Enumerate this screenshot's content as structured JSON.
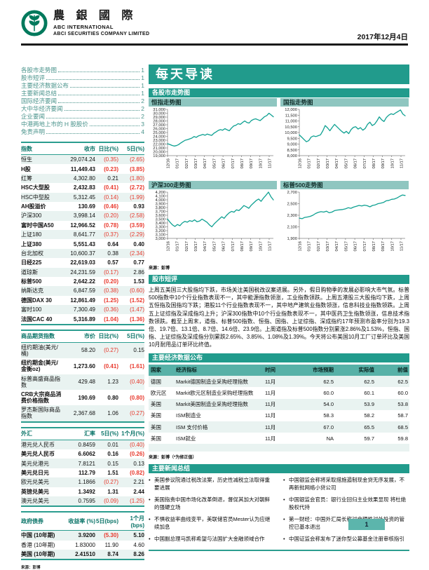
{
  "header": {
    "brand_cn": "農 銀 國 際",
    "brand_en1": "ABC INTERNATIONAL",
    "brand_en2": "ABCI SECURITIES COMPANY LIMITED",
    "date": "2017年12月4日"
  },
  "colors": {
    "teal": "#219b8c",
    "teal_light": "#8fc6c0",
    "row_alt": "#e9f3f1",
    "negative_red": "#e8382c",
    "logo_green": "#00795c",
    "chart_line": "#0fa192"
  },
  "toc": [
    {
      "label": "各股市走势图",
      "page": "1"
    },
    {
      "label": "股市短评",
      "page": "1"
    },
    {
      "label": "主要经济数据公布",
      "page": "1"
    },
    {
      "label": "主要新闻总结",
      "page": "1"
    },
    {
      "label": "国际经济要闻",
      "page": "2"
    },
    {
      "label": "大中华经济要闻",
      "page": "2"
    },
    {
      "label": "企业要闻",
      "page": "2"
    },
    {
      "label": "中港两地上市的 H 股股价",
      "page": "3"
    },
    {
      "label": "免责声明",
      "page": "4"
    }
  ],
  "left_tables": [
    {
      "name": "market-index-table",
      "headers": [
        "指数",
        "收市",
        "日比(%)",
        "5日(%)"
      ],
      "rows": [
        [
          "恒生",
          "29,074.24",
          "(0.35)",
          "(2.65)",
          0
        ],
        [
          "H股",
          "11,449.43",
          "(0.23)",
          "(3.85)",
          1
        ],
        [
          "红筹",
          "4,302.80",
          "0.21",
          "(1.80)",
          0
        ],
        [
          "HSC大型股",
          "2,432.83",
          "(0.41)",
          "(2.72)",
          1
        ],
        [
          "HSC中型股",
          "5,312.45",
          "(0.14)",
          "(1.99)",
          0
        ],
        [
          "AH股溢价",
          "130.69",
          "(0.46)",
          "0.93",
          1
        ],
        [
          "沪深300",
          "3,998.14",
          "(0.20)",
          "(2.58)",
          0
        ],
        [
          "富时中国A50",
          "12,966.52",
          "(0.78)",
          "(3.59)",
          1
        ],
        [
          "上证180",
          "8,641.77",
          "(0.37)",
          "(2.29)",
          0
        ],
        [
          "上证380",
          "5,551.43",
          "0.64",
          "0.40",
          1
        ],
        [
          "台北加权",
          "10,600.37",
          "0.38",
          "(2.34)",
          0
        ],
        [
          "日经225",
          "22,619.03",
          "0.57",
          "0.77",
          1
        ],
        [
          "道琼斯",
          "24,231.59",
          "(0.17)",
          "2.86",
          0
        ],
        [
          "标普500",
          "2,642.22",
          "(0.20)",
          "1.53",
          1
        ],
        [
          "纳斯达克",
          "6,847.59",
          "(0.38)",
          "(0.60)",
          0
        ],
        [
          "德国DAX 30",
          "12,861.49",
          "(1.25)",
          "(1.52)",
          1
        ],
        [
          "富时100",
          "7,300.49",
          "(0.36)",
          "(1.47)",
          0
        ],
        [
          "法国CAC 40",
          "5,316.89",
          "(1.04)",
          "(1.36)",
          1
        ]
      ]
    },
    {
      "name": "commodity-futures-table",
      "headers": [
        "商品期货指数",
        "市价",
        "日比(%)",
        "5日(%)"
      ],
      "rows": [
        [
          "纽约期油(美元/桶)",
          "58.20",
          "(0.27)",
          "0.15",
          0
        ],
        [
          "纽约期金(美元/金衡oz)",
          "1,273.60",
          "(0.41)",
          "(1.61)",
          1
        ],
        [
          "标普高盛商品指数",
          "429.48",
          "1.23",
          "(0.40)",
          0
        ],
        [
          "CRB大宗商品消费价格指数",
          "190.69",
          "0.80",
          "(0.80)",
          1
        ],
        [
          "罗杰斯国际商品指数",
          "2,367.68",
          "1.06",
          "(0.27)",
          0
        ]
      ]
    },
    {
      "name": "fx-table",
      "headers": [
        "外汇",
        "汇率",
        "5日(%)",
        "1个月(%)"
      ],
      "rows": [
        [
          "港元兑人民币",
          "0.8459",
          "0.01",
          "(0.40)",
          0
        ],
        [
          "美元兑人民币",
          "6.6062",
          "0.16",
          "(0.26)",
          1
        ],
        [
          "美元兑港元",
          "7.8121",
          "0.15",
          "0.13",
          0
        ],
        [
          "美元兑日元",
          "112.79",
          "1.51",
          "(0.82)",
          1
        ],
        [
          "欧元兑美元",
          "1.1866",
          "(0.27)",
          "2.21",
          0
        ],
        [
          "英镑兑美元",
          "1.3492",
          "1.31",
          "2.44",
          1
        ],
        [
          "澳元兑美元",
          "0.7595",
          "(0.09)",
          "(1.25)",
          0
        ]
      ]
    },
    {
      "name": "govt-bond-table",
      "headers": [
        "政府债券",
        "收益率 (%)",
        "5日(bps)",
        "1个月(bps)"
      ],
      "rows": [
        [
          "中国 (10年期)",
          "3.9200",
          "(5.30)",
          "5.10",
          1
        ],
        [
          "香港 (10年期)",
          "1.83000",
          "11.90",
          "4.60",
          0
        ],
        [
          "美国 (10年期)",
          "2.41510",
          "8.74",
          "8.26",
          1
        ]
      ]
    }
  ],
  "left_source_note": "来源：彭博",
  "main": {
    "banner": "每天导读",
    "charts_section_title": "各股市走势图",
    "charts_source": "来源：彭博",
    "commentary": {
      "title": "股市短评",
      "text": "上周五美国三大股指均下跌，市场关注美国税改议案进展。另外，假日购物季的发展必影响大市气氛。标普500指数中10个行业指数表现不一，其中能源指数领涨，工业指数领跌。上周五港股三大股指均下跌，上周五恒指及国指均下跌；港股11个行业指数表现不一，其中地产建筑业指数领涨，信息科技业指数领跌。上周五上证综指及深成指均上升；沪深300指数中10个行业指数表现不一，其中医药卫生指数领涨，信息技术指数领跌。截至上周末，道指、标普500指数、恒指、国指、上证综指、深成指约17年预测市盈率分别为19.3倍、19.7倍、13.1倍、8.7倍、14.6倍、23.9倍。上周道指及标普500指数分别累涨2.86%及1.53%，恒指、国指、上证综指及深成指分别累跌2.65%、3.85%、1.08%及1.39%。今天将公布美国10月工厂订单环比及美国10月耐用品订单环比终值。"
    },
    "econ": {
      "title": "主要经济数据公布",
      "headers": [
        "国家",
        "经济指标",
        "时间",
        "市场预期",
        "实际值",
        "前值"
      ],
      "rows": [
        [
          "德国",
          "Markit德国制造业采购经理指数",
          "11月",
          "62.5",
          "62.5",
          "62.5"
        ],
        [
          "欧元区",
          "Markit欧元区制造业采购经理指数",
          "11月",
          "60.0",
          "60.1",
          "60.0"
        ],
        [
          "美国",
          "Markit美国制造业采购经理指数",
          "11月",
          "54.0",
          "53.9",
          "53.8"
        ],
        [
          "美国",
          "ISM制造业",
          "11月",
          "58.3",
          "58.2",
          "58.7"
        ],
        [
          "美国",
          "ISM 支付价格",
          "11月",
          "67.0",
          "65.5",
          "68.5"
        ],
        [
          "美国",
          "ISM就业",
          "11月",
          "NA",
          "59.7",
          "59.8"
        ]
      ],
      "note": "来源：彭博（*为修正值）"
    },
    "news": {
      "title": "主要新闻总结",
      "left": [
        "美国参议院通过税改法案，历史性减税立法取得重要进展",
        "美国指责中国市场化改革倒退，督促其加大对朝鲜的强硬立场",
        "不惧收益率曲线变平，美联储官员Mester认为应继续加息",
        "中国副总理马凯称希望与法国扩大金融领域合作"
      ],
      "right": [
        "中国银监会称将采取措施遏制现金贷无序发展，不再新批网络小贷公司",
        "中国银监会官员：银行业回归主业效果显现 将杜绝股权代持",
        "第一财经：中国外汇局长称对非理性对外投资的管控已基本退出",
        "中国证监会称发布了迷你型公募基金注册审核指引"
      ]
    },
    "page_number": "1"
  },
  "chart_data": [
    {
      "type": "line",
      "title": "恒指走势图",
      "x_labels": [
        "12/16",
        "01/17",
        "02/17",
        "03/17",
        "04/17",
        "05/17",
        "06/17",
        "07/17",
        "08/17",
        "09/17",
        "10/17",
        "11/17"
      ],
      "ylim": [
        19000,
        31000
      ],
      "y_step": 1000,
      "line_color": "#0fa192",
      "values": [
        22100,
        21900,
        21650,
        21500,
        21600,
        21850,
        22300,
        22650,
        23000,
        23150,
        23350,
        23550,
        23950,
        23750,
        24100,
        24300,
        24500,
        24300,
        24600,
        24400,
        24250,
        24800,
        25150,
        25550,
        25750,
        25600,
        26000,
        25700,
        25450,
        26150,
        26700,
        26900,
        27300,
        27100,
        27600,
        28000,
        27600,
        27450,
        28100,
        28400,
        28550,
        28300,
        28100,
        28600,
        29100,
        29400,
        30000,
        29550,
        29074
      ]
    },
    {
      "type": "line",
      "title": "国指走势图",
      "x_labels": [
        "12/16",
        "01/17",
        "02/17",
        "03/17",
        "04/17",
        "05/17",
        "06/17",
        "07/17",
        "08/17",
        "09/17",
        "10/17",
        "11/17"
      ],
      "ylim": [
        8000,
        12000
      ],
      "y_step": 500,
      "line_color": "#0fa192",
      "values": [
        9800,
        9600,
        9400,
        9200,
        9300,
        9600,
        9700,
        9650,
        9720,
        9800,
        10150,
        10600,
        10400,
        10150,
        10450,
        10700,
        10500,
        10300,
        10100,
        9950,
        10100,
        9900,
        10250,
        10450,
        10500,
        10300,
        10420,
        10200,
        10350,
        10700,
        10900,
        10600,
        10720,
        11000,
        11350,
        11100,
        10950,
        11300,
        11500,
        11620,
        11550,
        11700,
        11820,
        11950,
        11600,
        11449
      ]
    },
    {
      "type": "line",
      "title": "沪深300走势图",
      "x_labels": [
        "12/16",
        "01/17",
        "02/17",
        "03/17",
        "04/17",
        "05/17",
        "06/17",
        "07/17",
        "08/17",
        "09/17",
        "10/17",
        "11/17"
      ],
      "ylim": [
        3000,
        4200
      ],
      "y_step": 100,
      "line_color": "#0fa192",
      "values": [
        3500,
        3420,
        3350,
        3310,
        3360,
        3330,
        3400,
        3440,
        3420,
        3460,
        3440,
        3480,
        3430,
        3450,
        3500,
        3460,
        3420,
        3350,
        3300,
        3380,
        3440,
        3500,
        3560,
        3520,
        3600,
        3660,
        3700,
        3680,
        3740,
        3720,
        3780,
        3850,
        3820,
        3780,
        3860,
        3920,
        3980,
        4020,
        3960,
        4050,
        4120,
        4200,
        4080,
        3998
      ]
    },
    {
      "type": "line",
      "title": "标普500走势图",
      "x_labels": [
        "12/16",
        "01/17",
        "02/17",
        "03/17",
        "04/17",
        "05/17",
        "06/17",
        "07/17",
        "08/17",
        "09/17",
        "10/17",
        "11/17"
      ],
      "ylim": [
        1900,
        2700
      ],
      "y_step": 200,
      "line_color": "#0fa192",
      "values": [
        2250,
        2240,
        2262,
        2270,
        2280,
        2300,
        2330,
        2350,
        2362,
        2355,
        2370,
        2342,
        2355,
        2380,
        2390,
        2395,
        2400,
        2410,
        2430,
        2420,
        2440,
        2455,
        2470,
        2460,
        2475,
        2465,
        2445,
        2470,
        2480,
        2500,
        2510,
        2520,
        2550,
        2557,
        2575,
        2580,
        2600,
        2627,
        2650,
        2642
      ]
    }
  ]
}
